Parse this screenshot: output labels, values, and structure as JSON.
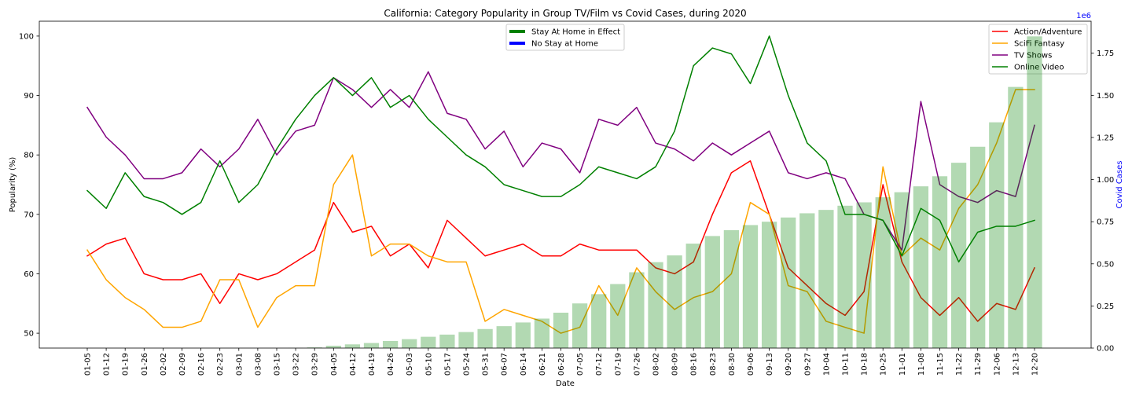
{
  "chart_data": {
    "type": "line",
    "title": "California: Category Popularity in Group TV/Film vs Covid Cases, during 2020",
    "xlabel": "Date",
    "ylabel": "Popularity (%)",
    "y2label": "Covid Cases",
    "y2_scale_label": "1e6",
    "ylim": [
      47.5,
      102.5
    ],
    "yticks": [
      50,
      60,
      70,
      80,
      90,
      100
    ],
    "y2lim": [
      0,
      1.94
    ],
    "y2ticks": [
      0,
      0.25,
      0.5,
      0.75,
      1.0,
      1.25,
      1.5,
      1.75
    ],
    "y2_color": "#0000ff",
    "grid": false,
    "categories": [
      "01-05",
      "01-12",
      "01-19",
      "01-26",
      "02-02",
      "02-09",
      "02-16",
      "02-23",
      "03-01",
      "03-08",
      "03-15",
      "03-22",
      "03-29",
      "04-05",
      "04-12",
      "04-19",
      "04-26",
      "05-03",
      "05-10",
      "05-17",
      "05-24",
      "05-31",
      "06-07",
      "06-14",
      "06-21",
      "06-28",
      "07-05",
      "07-12",
      "07-19",
      "07-26",
      "08-02",
      "08-09",
      "08-16",
      "08-23",
      "08-30",
      "09-06",
      "09-13",
      "09-20",
      "09-27",
      "10-04",
      "10-11",
      "10-18",
      "10-25",
      "11-01",
      "11-08",
      "11-15",
      "11-22",
      "11-29",
      "12-06",
      "12-13",
      "12-20"
    ],
    "series": [
      {
        "name": "Action/Adventure",
        "color": "#ff0000",
        "values": [
          63,
          65,
          66,
          60,
          59,
          59,
          60,
          55,
          60,
          59,
          60,
          62,
          64,
          72,
          67,
          68,
          63,
          65,
          61,
          69,
          66,
          63,
          64,
          65,
          63,
          63,
          65,
          64,
          64,
          64,
          61,
          60,
          62,
          70,
          77,
          79,
          70,
          61,
          58,
          55,
          53,
          57,
          75,
          62,
          56,
          53,
          56,
          52,
          55,
          54,
          61
        ]
      },
      {
        "name": "SciFi Fantasy",
        "color": "#ffa500",
        "values": [
          64,
          59,
          56,
          54,
          51,
          51,
          52,
          59,
          59,
          51,
          56,
          58,
          58,
          75,
          80,
          63,
          65,
          65,
          63,
          62,
          62,
          52,
          54,
          53,
          52,
          50,
          51,
          58,
          53,
          61,
          57,
          54,
          56,
          57,
          60,
          72,
          70,
          58,
          57,
          52,
          51,
          50,
          78,
          63,
          66,
          64,
          71,
          75,
          82,
          91,
          91
        ]
      },
      {
        "name": "TV Shows",
        "color": "#800080",
        "values": [
          88,
          83,
          80,
          76,
          76,
          77,
          81,
          78,
          81,
          86,
          80,
          84,
          85,
          93,
          91,
          88,
          91,
          88,
          94,
          87,
          86,
          81,
          84,
          78,
          82,
          81,
          77,
          86,
          85,
          88,
          82,
          81,
          79,
          82,
          80,
          82,
          84,
          77,
          76,
          77,
          76,
          70,
          69,
          64,
          89,
          75,
          73,
          72,
          74,
          73,
          85
        ]
      },
      {
        "name": "Online Video",
        "color": "#008000",
        "values": [
          74,
          71,
          77,
          73,
          72,
          70,
          72,
          79,
          72,
          75,
          81,
          86,
          90,
          93,
          90,
          93,
          88,
          90,
          86,
          83,
          80,
          78,
          75,
          74,
          73,
          73,
          75,
          78,
          77,
          76,
          78,
          84,
          95,
          98,
          97,
          92,
          100,
          90,
          82,
          79,
          70,
          70,
          69,
          63,
          71,
          69,
          62,
          67,
          68,
          68,
          69
        ]
      }
    ],
    "bars": {
      "type": "bar",
      "axis": "right",
      "color": "#008000",
      "values": [
        0,
        0,
        0,
        0,
        0,
        0,
        0,
        0,
        0,
        0,
        0,
        0.001,
        0.004,
        0.014,
        0.022,
        0.03,
        0.042,
        0.053,
        0.067,
        0.08,
        0.095,
        0.113,
        0.13,
        0.152,
        0.175,
        0.21,
        0.265,
        0.32,
        0.38,
        0.45,
        0.51,
        0.55,
        0.62,
        0.665,
        0.7,
        0.73,
        0.75,
        0.775,
        0.8,
        0.82,
        0.845,
        0.865,
        0.895,
        0.925,
        0.96,
        1.02,
        1.1,
        1.195,
        1.34,
        1.55,
        1.85
      ]
    },
    "legend": {
      "location": "upper right"
    },
    "legend_stay_at_home": {
      "location": "upper center",
      "items": [
        {
          "label": "Stay At Home in Effect",
          "color": "#008000"
        },
        {
          "label": "No Stay at Home",
          "color": "#0000ff"
        }
      ]
    }
  }
}
